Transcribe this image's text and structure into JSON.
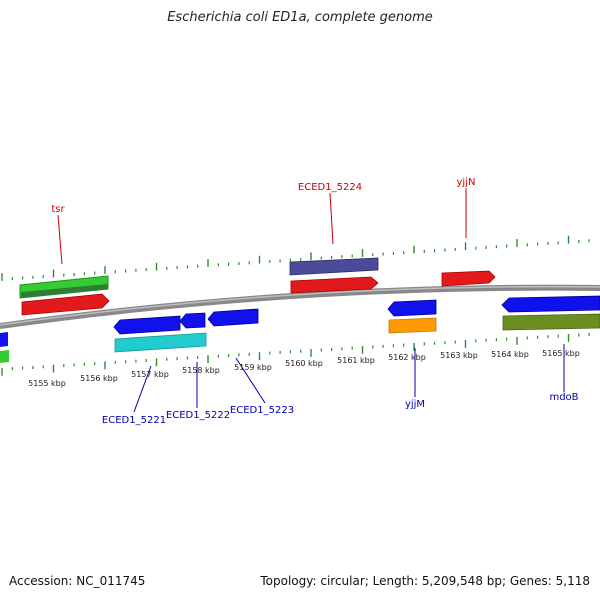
{
  "title": "Escherichia coli ED1a, complete genome",
  "footer": {
    "accession": "Accession: NC_011745",
    "summary": "Topology: circular; Length: 5,209,548 bp; Genes: 5,118"
  },
  "colors": {
    "backbone": "#8a8a8a",
    "tick": "#2e8b2e",
    "label_top": "#cc0000",
    "label_bottom": "#0000aa",
    "red": "#e31a1c",
    "green": "#33cc33",
    "darkgreen": "#2e7d32",
    "slate": "#4b4b99",
    "blue": "#1111ee",
    "cyan": "#22cccc",
    "orange": "#ff9900",
    "olive": "#6b8e23"
  },
  "scale_labels": [
    "5155 kbp",
    "5156 kbp",
    "5157 kbp",
    "5158 kbp",
    "5159 kbp",
    "5160 kbp",
    "5161 kbp",
    "5162 kbp",
    "5163 kbp",
    "5164 kbp",
    "5165 kbp"
  ],
  "gene_labels_top": [
    "tsr",
    "ECED1_5224",
    "yjjN"
  ],
  "gene_labels_bottom": [
    "ECED1_5221",
    "ECED1_5222",
    "ECED1_5223",
    "yjjM",
    "mdoB"
  ]
}
